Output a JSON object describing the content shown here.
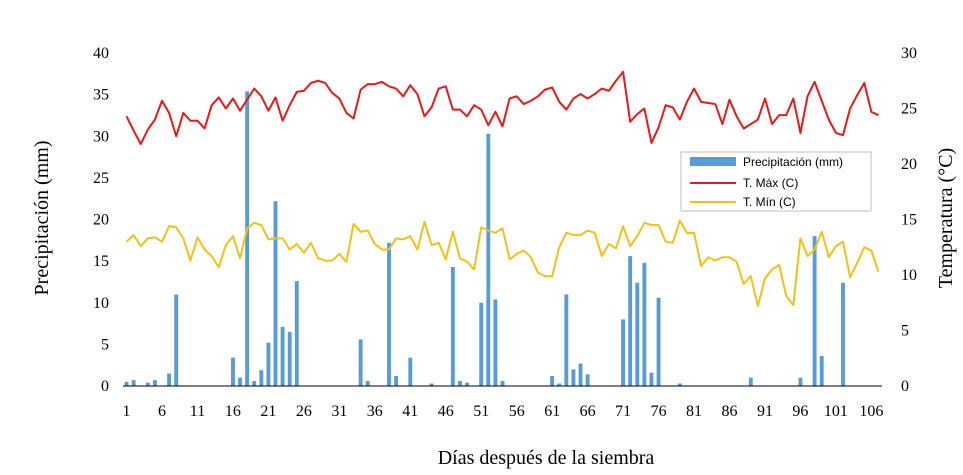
{
  "chart_data": {
    "type": "bar+line",
    "xlabel": "Días después de la siembra",
    "ylabel_left": "Precipitación (mm)",
    "ylabel_right": "Temperatura (°C)",
    "ylim_left": [
      0,
      40
    ],
    "ylim_right": [
      0,
      30
    ],
    "yticks_left": [
      "0",
      "5",
      "10",
      "15",
      "20",
      "25",
      "30",
      "35",
      "40"
    ],
    "yticks_right": [
      "0",
      "5",
      "10",
      "15",
      "20",
      "25",
      "30"
    ],
    "x_range": [
      1,
      107
    ],
    "xtick_labels": [
      "1",
      "6",
      "11",
      "16",
      "21",
      "26",
      "31",
      "36",
      "41",
      "46",
      "51",
      "56",
      "61",
      "66",
      "71",
      "76",
      "81",
      "86",
      "91",
      "96",
      "101",
      "106"
    ],
    "grid": false,
    "legend_position": "right",
    "legend": [
      "Precipitación (mm)",
      "T. Máx (C)",
      "T. Mín (C)"
    ],
    "colors": {
      "precip": "#5B9BD5",
      "tmax": "#E41A1C",
      "tmin": "#F2C01B"
    },
    "series": [
      {
        "name": "Precipitación (mm)",
        "axis": "left",
        "type": "bar",
        "values": [
          0.5,
          0.7,
          0,
          0.4,
          0.7,
          0,
          1.5,
          11,
          0,
          0,
          0,
          0,
          0,
          0,
          0,
          3.4,
          1,
          35.4,
          0.6,
          1.9,
          5.2,
          22.2,
          7.1,
          6.5,
          12.6,
          0,
          0,
          0,
          0,
          0,
          0,
          0,
          0,
          5.6,
          0.6,
          0,
          0,
          17.2,
          1.2,
          0,
          3.4,
          0,
          0,
          0.3,
          0,
          0,
          14.3,
          0.6,
          0.4,
          0,
          10,
          30.3,
          10.4,
          0.6,
          0,
          0,
          0,
          0,
          0,
          0,
          1.2,
          0.3,
          11,
          2,
          2.7,
          1.4,
          0,
          0,
          0,
          0,
          8,
          15.6,
          12.4,
          14.8,
          1.6,
          10.6,
          0,
          0,
          0.3,
          0,
          0,
          0,
          0,
          0,
          0,
          0,
          0,
          0,
          1,
          0,
          0,
          0,
          0,
          0,
          0,
          1,
          0,
          18,
          3.6,
          0,
          0,
          12.4,
          0,
          0,
          0,
          0,
          0
        ]
      },
      {
        "name": "T. Máx (C)",
        "axis": "right",
        "type": "line",
        "values": [
          24.3,
          23,
          21.8,
          23.1,
          24,
          25.7,
          24.6,
          22.5,
          24.6,
          23.9,
          23.9,
          23.2,
          25.3,
          26,
          25,
          25.9,
          24.8,
          25.8,
          26.8,
          26.1,
          24.8,
          26,
          23.9,
          25.3,
          26.5,
          26.6,
          27.3,
          27.5,
          27.3,
          26.4,
          25.9,
          24.6,
          24.1,
          26.7,
          27.2,
          27.2,
          27.4,
          27,
          26.8,
          26.1,
          27.1,
          26.3,
          24.3,
          25.1,
          26.8,
          27,
          24.9,
          24.9,
          24.3,
          25.3,
          24.9,
          23.5,
          24.7,
          23.4,
          25.9,
          26.1,
          25.4,
          25.7,
          26.1,
          26.7,
          26.9,
          25.6,
          24.9,
          25.9,
          26.3,
          25.9,
          26.3,
          26.8,
          26.6,
          27.5,
          28.3,
          23.8,
          24.5,
          25,
          21.9,
          23.3,
          25.3,
          25.1,
          24,
          25.6,
          26.8,
          25.6,
          25.5,
          25.4,
          23.6,
          25.8,
          24.3,
          23.2,
          23.6,
          24,
          25.9,
          23.6,
          24.4,
          24.4,
          25.9,
          22.8,
          26.1,
          27.4,
          25.7,
          24,
          22.8,
          22.6,
          25,
          26.2,
          27.3,
          24.7,
          24.4
        ]
      },
      {
        "name": "T. Mín (C)",
        "axis": "right",
        "type": "line",
        "values": [
          13,
          13.6,
          12.6,
          13.3,
          13.4,
          13,
          14.4,
          14.3,
          13.3,
          11.3,
          13.4,
          12.3,
          11.7,
          10.7,
          12.7,
          13.5,
          11.5,
          14.2,
          14.7,
          14.5,
          13.2,
          13.3,
          13.3,
          12.3,
          12.8,
          12,
          12.9,
          11.5,
          11.3,
          11.3,
          11.9,
          11.2,
          14.6,
          13.9,
          14,
          12.8,
          12.3,
          12.3,
          13.3,
          13.2,
          13.5,
          12.3,
          14.8,
          12.7,
          12.9,
          11.4,
          13.9,
          11.5,
          11.2,
          10.5,
          14.3,
          14,
          13.8,
          14.2,
          11.4,
          11.9,
          12.2,
          11.6,
          10.2,
          9.9,
          9.9,
          12.5,
          13.8,
          13.6,
          13.6,
          14,
          13.8,
          11.7,
          12.8,
          12.4,
          14.4,
          12.6,
          13.5,
          14.7,
          14.5,
          14.5,
          13,
          12.9,
          14.9,
          13.8,
          13.8,
          10.8,
          11.6,
          11.3,
          11.6,
          11.6,
          11.2,
          9.2,
          9.9,
          7.2,
          9.7,
          10.5,
          10.9,
          8.1,
          7.3,
          13.3,
          11.7,
          12.3,
          13.9,
          11.6,
          12.6,
          13,
          9.8,
          11.1,
          12.5,
          12.2,
          10.3
        ]
      }
    ]
  }
}
